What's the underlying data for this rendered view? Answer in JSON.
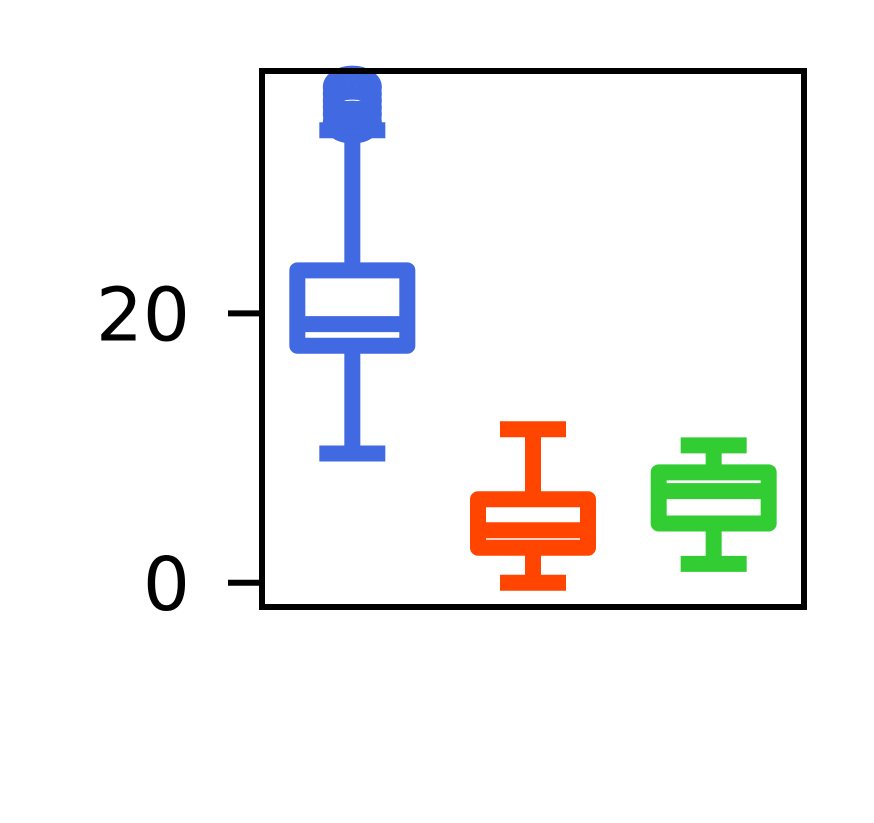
{
  "chart_data": {
    "type": "box",
    "title": "",
    "xlabel": "",
    "ylabel": "",
    "ylim": [
      -1.8,
      38.0
    ],
    "yticks": [
      0,
      20
    ],
    "ytick_labels": [
      "0",
      "20"
    ],
    "x_tick_labels": [],
    "grid": false,
    "legend": "none",
    "series": [
      {
        "color": "#4169E1",
        "whisker_low": 9.6,
        "q1": 17.6,
        "median": 19.2,
        "q3": 23.2,
        "whisker_high": 33.6,
        "outliers": [
          34.2,
          34.8,
          35.3,
          35.8,
          36.3,
          36.8
        ]
      },
      {
        "color": "#FF4500",
        "whisker_low": 0.0,
        "q1": 2.6,
        "median": 3.9,
        "q3": 6.2,
        "whisker_high": 11.4,
        "outliers": []
      },
      {
        "color": "#32CD32",
        "whisker_low": 1.4,
        "q1": 4.4,
        "median": 6.8,
        "q3": 8.2,
        "whisker_high": 10.2,
        "outliers": []
      }
    ]
  }
}
